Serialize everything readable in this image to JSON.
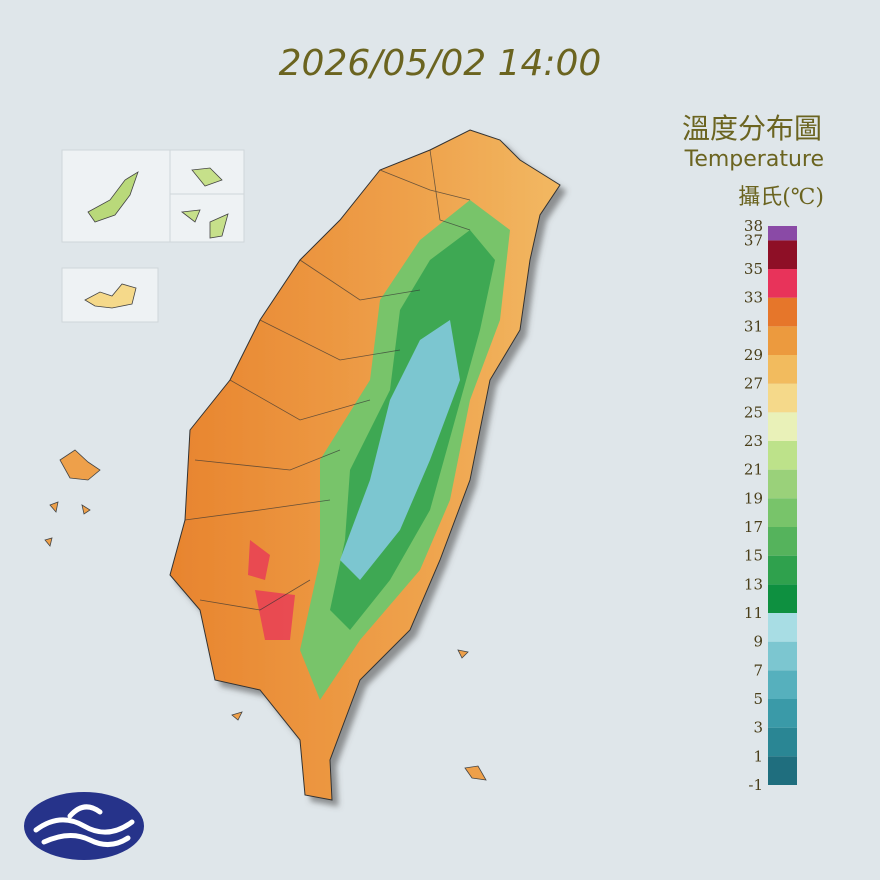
{
  "header": {
    "timestamp": "2026/05/02 14:00"
  },
  "legend": {
    "title": "溫度分布圖",
    "subtitle": "Temperature",
    "unit": "攝氏(℃)",
    "ticks": [
      -1,
      1,
      3,
      5,
      7,
      9,
      11,
      13,
      15,
      17,
      19,
      21,
      23,
      25,
      27,
      29,
      31,
      33,
      35,
      37,
      38
    ],
    "colors": [
      "#1f6e7e",
      "#2a8694",
      "#3a9aa8",
      "#56b0bd",
      "#7cc6d0",
      "#a8dde4",
      "#0e9040",
      "#2fa14d",
      "#55b35c",
      "#78c46a",
      "#9ad17a",
      "#bde28a",
      "#e9f1b8",
      "#f5d98a",
      "#f2bb5e",
      "#ec9a3e",
      "#e6762a",
      "#e8335a",
      "#8e0f26",
      "#8a4aa6"
    ]
  }
}
